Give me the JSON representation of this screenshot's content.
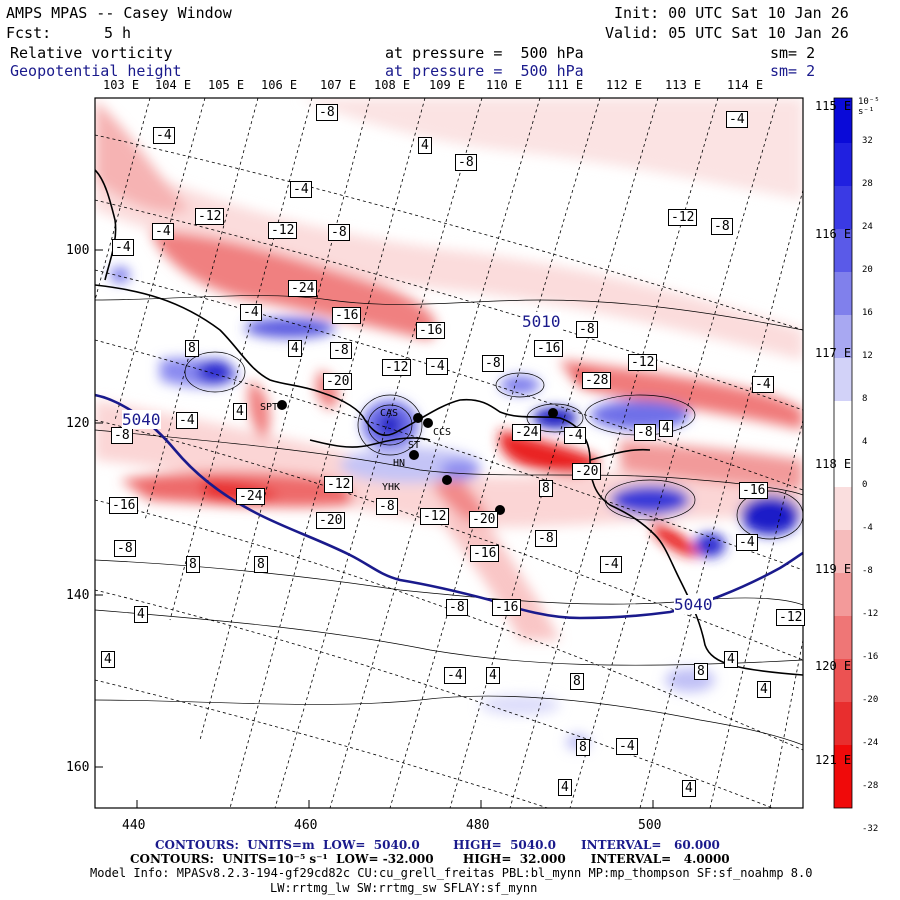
{
  "header": {
    "title": "AMPS MPAS -- Casey Window",
    "init": "Init: 00 UTC Sat 10 Jan 26",
    "fcst_label": "Fcst:",
    "fcst_value": "5 h",
    "valid": "Valid: 05 UTC Sat 10 Jan 26",
    "field1_name": "Relative vorticity",
    "field1_level": "at pressure =  500 hPa",
    "field1_sm": "sm= 2",
    "field2_name": "Geopotential height",
    "field2_level": "at pressure =  500 hPa",
    "field2_sm": "sm= 2"
  },
  "axes": {
    "top_lon": [
      "103 E",
      "104 E",
      "105 E",
      "106 E",
      "107 E",
      "108 E",
      "109 E",
      "110 E",
      "111 E",
      "112 E",
      "113 E",
      "114 E"
    ],
    "right_lon": [
      "115 E",
      "116 E",
      "117 E",
      "118 E",
      "119 E",
      "120 E",
      "121 E"
    ],
    "y_ticks": [
      "100",
      "120",
      "140",
      "160"
    ],
    "x_ticks": [
      "440",
      "460",
      "480",
      "500"
    ]
  },
  "colorbar": {
    "units": "10⁻⁵ s⁻¹",
    "labels": [
      "32",
      "28",
      "24",
      "20",
      "16",
      "12",
      "8",
      "4",
      "0",
      "-4",
      "-8",
      "-12",
      "-16",
      "-20",
      "-24",
      "-28",
      "-32"
    ]
  },
  "map_labels": {
    "vorticity": [
      "-4",
      "-8",
      "-4",
      "4",
      "-8",
      "-4",
      "-12",
      "-12",
      "-8",
      "-4",
      "-4",
      "-12",
      "-8",
      "-24",
      "-16",
      "-16",
      "-4",
      "-8",
      "4",
      "8",
      "-8",
      "-12",
      "-8",
      "-4",
      "-20",
      "-16",
      "-12",
      "-28",
      "-4",
      "4",
      "-4",
      "-24",
      "-4",
      "-8",
      "4",
      "-8",
      "-20",
      "-24",
      "-12",
      "-16",
      "-16",
      "-8",
      "-12",
      "-20",
      "-20",
      "-8",
      "-16",
      "8",
      "-4",
      "8",
      "8",
      "-4",
      "-8",
      "-16",
      "-12",
      "-8",
      "4",
      "4",
      "-4",
      "4",
      "8",
      "4",
      "8",
      "4",
      "8",
      "-4",
      "4",
      "4"
    ],
    "height": [
      "5010",
      "5040",
      "5040"
    ],
    "stations": [
      "SPT",
      "CAS",
      "CCS",
      "ST",
      "HN",
      "YHK"
    ]
  },
  "footer": {
    "line1": "CONTOURS:  UNITS=m  LOW=  5040.0        HIGH=  5040.0      INTERVAL=   60.000",
    "line2": "CONTOURS:  UNITS=10⁻⁵ s⁻¹  LOW= -32.000       HIGH=  32.000      INTERVAL=   4.0000",
    "line3": "Model Info: MPASv8.2.3-194-gf29cd82c CU:cu_grell_freitas PBL:bl_mynn MP:mp_thompson SF:sf_noahmp 8.0",
    "line4": "LW:rrtmg_lw SW:rrtmg_sw SFLAY:sf_mynn"
  }
}
